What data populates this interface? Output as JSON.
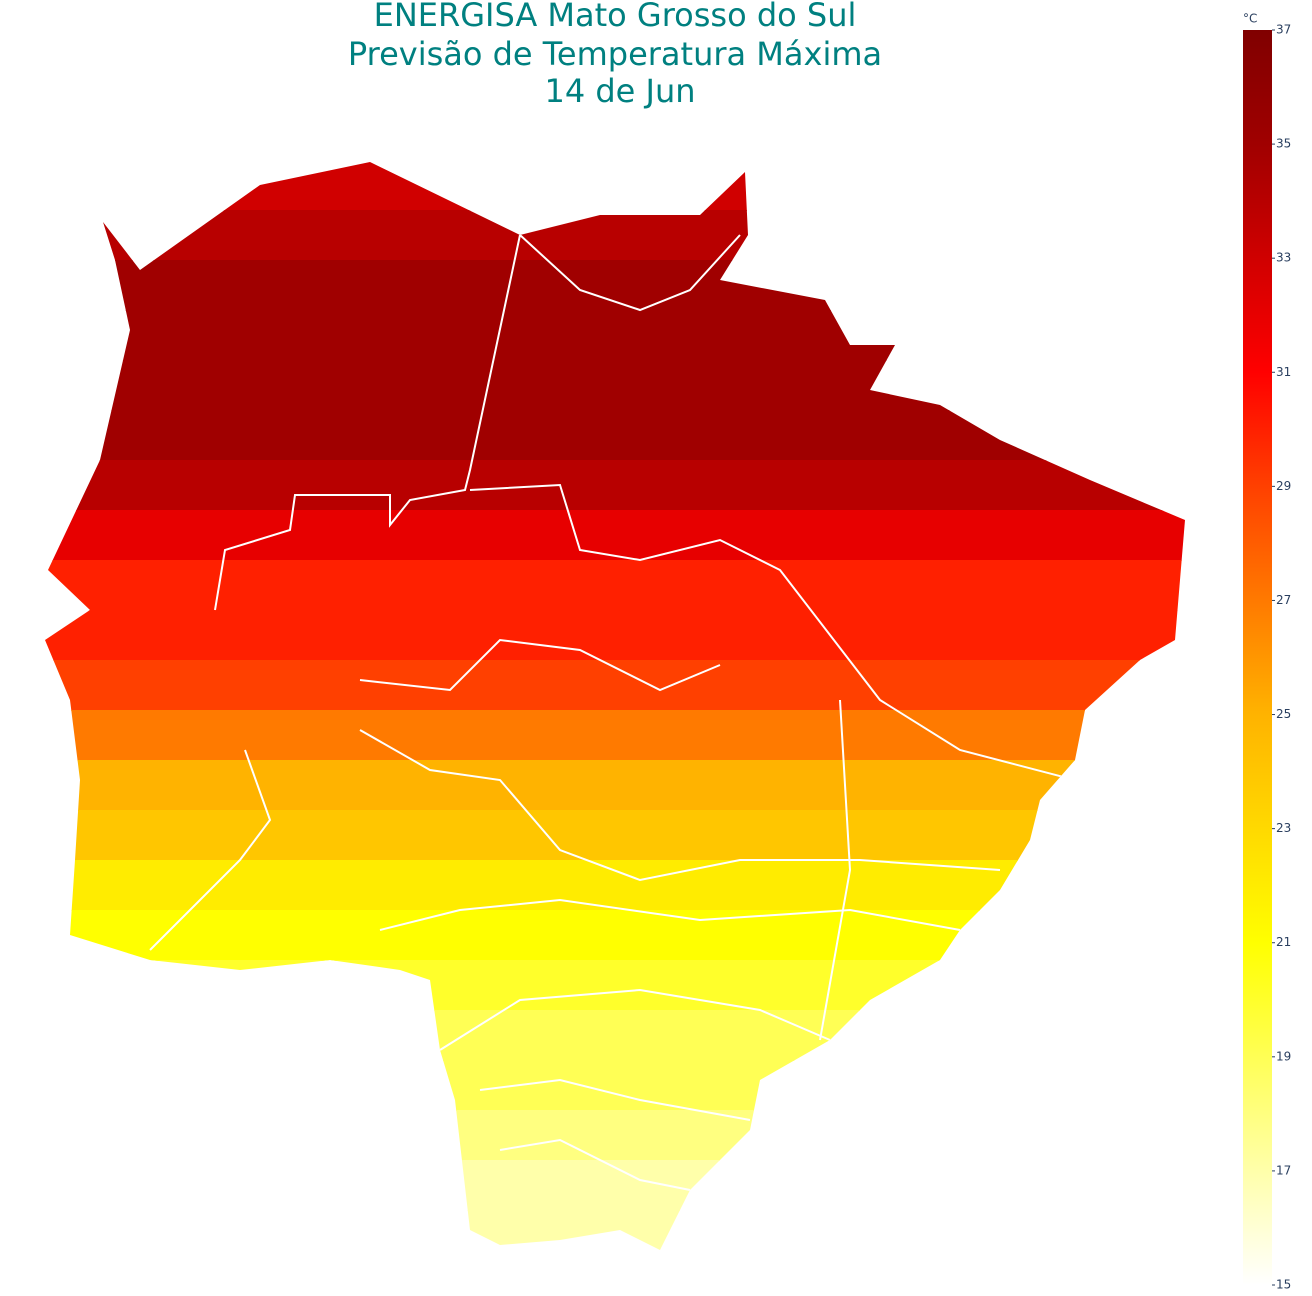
{
  "map": {
    "title": [
      "ENERGISA Mato Grosso do Sul",
      "Previsão de Temperatura Máxima",
      "14 de Jun"
    ],
    "band_values": [
      33,
      34,
      35,
      35,
      35,
      35,
      34,
      32,
      30,
      30,
      29,
      27,
      25,
      24,
      22,
      21,
      20,
      19,
      19,
      18,
      17,
      17
    ],
    "colorscale": [
      [
        15,
        "#ffffff"
      ],
      [
        21,
        "#ffff00"
      ],
      [
        25,
        "#ffb300"
      ],
      [
        29,
        "#ff4000"
      ],
      [
        31,
        "#ff0000"
      ],
      [
        35,
        "#a00000"
      ],
      [
        37,
        "#800000"
      ]
    ],
    "colorbar": {
      "title": "°C",
      "range": [
        15,
        37
      ],
      "ticks": [
        15,
        17,
        19,
        21,
        23,
        25,
        27,
        29,
        31,
        33,
        35,
        37
      ]
    }
  }
}
